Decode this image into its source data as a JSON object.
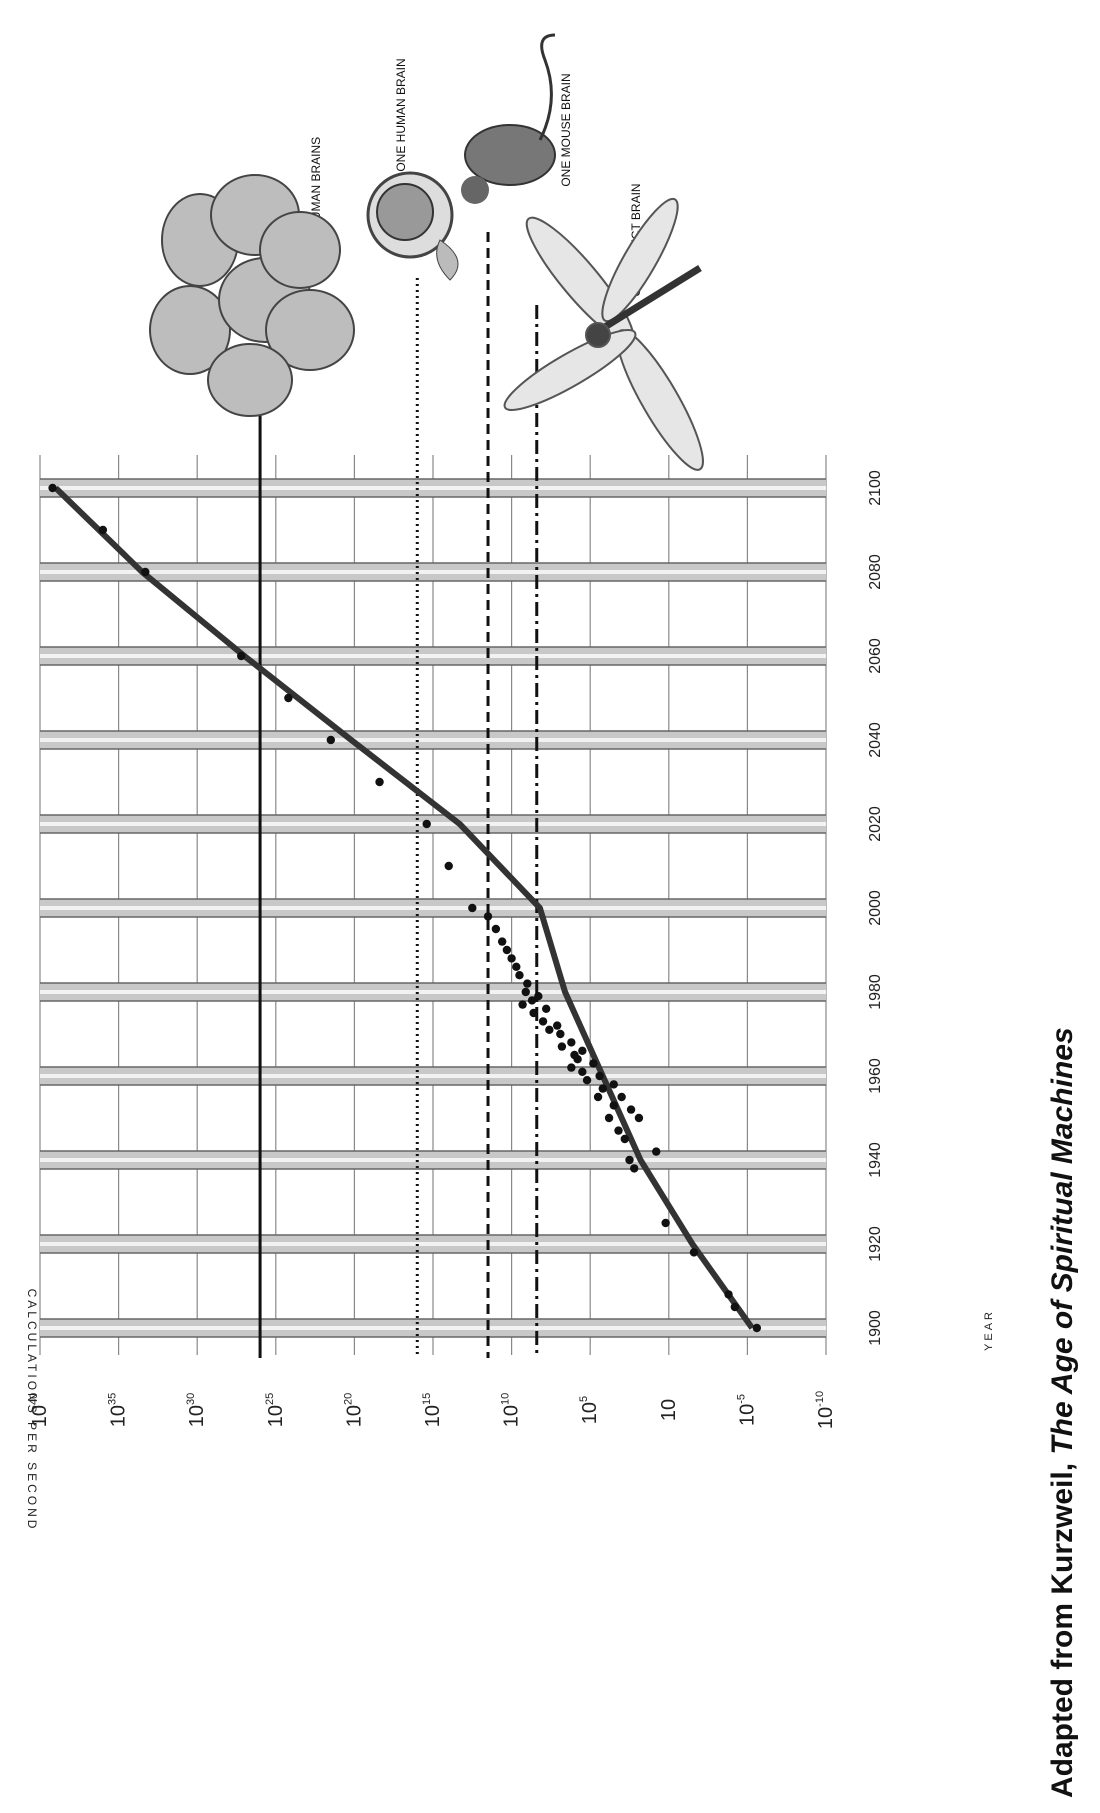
{
  "caption": {
    "prefix": "Adapted from Kurzweil, ",
    "book": "The Age of Spiritual Machines"
  },
  "chart_data": {
    "type": "scatter",
    "orientation": "rotated-90-ccw",
    "xlabel": "YEAR",
    "ylabel": "CALCULATIONS PER SECOND",
    "x_ticks": [
      "1900",
      "1920",
      "1940",
      "1960",
      "1980",
      "2000",
      "2020",
      "2040",
      "2060",
      "2080",
      "2100"
    ],
    "y_ticks": [
      {
        "base": "10",
        "exp": "-10",
        "value": -10
      },
      {
        "base": "10",
        "exp": "-5",
        "value": -5
      },
      {
        "base": "10",
        "exp": "",
        "value": 1
      },
      {
        "base": "10",
        "exp": "5",
        "value": 5
      },
      {
        "base": "10",
        "exp": "10",
        "value": 10
      },
      {
        "base": "10",
        "exp": "15",
        "value": 15
      },
      {
        "base": "10",
        "exp": "20",
        "value": 20
      },
      {
        "base": "10",
        "exp": "25",
        "value": 25
      },
      {
        "base": "10",
        "exp": "30",
        "value": 30
      },
      {
        "base": "10",
        "exp": "35",
        "value": 35
      },
      {
        "base": "10",
        "exp": "40",
        "value": 40
      }
    ],
    "xlim": [
      1895,
      2105
    ],
    "ylim": [
      -10,
      40
    ],
    "y_scale": "log10",
    "grid": true,
    "trend": [
      [
        1900,
        -5.3
      ],
      [
        1920,
        -1.5
      ],
      [
        1940,
        1.8
      ],
      [
        1960,
        4.2
      ],
      [
        1980,
        6.6
      ],
      [
        2000,
        8.2
      ],
      [
        2020,
        13.3
      ],
      [
        2040,
        20.2
      ],
      [
        2060,
        27
      ],
      [
        2080,
        33.5
      ],
      [
        2100,
        39
      ]
    ],
    "points": [
      [
        1900,
        -5.6
      ],
      [
        1905,
        -4.2
      ],
      [
        1908,
        -3.8
      ],
      [
        1918,
        -1.6
      ],
      [
        1925,
        0.2
      ],
      [
        1938,
        2.2
      ],
      [
        1940,
        2.5
      ],
      [
        1942,
        0.8
      ],
      [
        1945,
        2.8
      ],
      [
        1947,
        3.2
      ],
      [
        1950,
        1.9
      ],
      [
        1950,
        3.8
      ],
      [
        1952,
        2.4
      ],
      [
        1953,
        3.5
      ],
      [
        1955,
        3.0
      ],
      [
        1955,
        4.5
      ],
      [
        1957,
        4.2
      ],
      [
        1958,
        3.5
      ],
      [
        1959,
        5.2
      ],
      [
        1960,
        4.4
      ],
      [
        1961,
        5.5
      ],
      [
        1962,
        6.2
      ],
      [
        1963,
        4.8
      ],
      [
        1964,
        5.8
      ],
      [
        1965,
        6.0
      ],
      [
        1966,
        5.5
      ],
      [
        1967,
        6.8
      ],
      [
        1968,
        6.2
      ],
      [
        1970,
        6.9
      ],
      [
        1971,
        7.6
      ],
      [
        1972,
        7.1
      ],
      [
        1973,
        8.0
      ],
      [
        1975,
        8.6
      ],
      [
        1976,
        7.8
      ],
      [
        1977,
        9.3
      ],
      [
        1978,
        8.7
      ],
      [
        1979,
        8.3
      ],
      [
        1980,
        9.1
      ],
      [
        1982,
        9.0
      ],
      [
        1984,
        9.5
      ],
      [
        1986,
        9.7
      ],
      [
        1988,
        10.0
      ],
      [
        1990,
        10.3
      ],
      [
        1992,
        10.6
      ],
      [
        1995,
        11.0
      ],
      [
        1998,
        11.5
      ],
      [
        2000,
        12.5
      ],
      [
        2010,
        14.0
      ],
      [
        2020,
        15.4
      ],
      [
        2030,
        18.4
      ],
      [
        2040,
        21.5
      ],
      [
        2050,
        24.2
      ],
      [
        2060,
        27.2
      ],
      [
        2080,
        33.3
      ],
      [
        2090,
        36.0
      ],
      [
        2100,
        39.2
      ]
    ],
    "reference_lines": [
      {
        "name": "ALL HUMAN BRAINS",
        "value": 26,
        "style": "solid"
      },
      {
        "name": "ONE HUMAN BRAIN",
        "value": 16,
        "style": "dotted"
      },
      {
        "name": "ONE MOUSE BRAIN",
        "value": 11.5,
        "style": "dashed"
      },
      {
        "name": "ONE INSECT BRAIN",
        "value": 8.4,
        "style": "dashdot"
      }
    ]
  }
}
